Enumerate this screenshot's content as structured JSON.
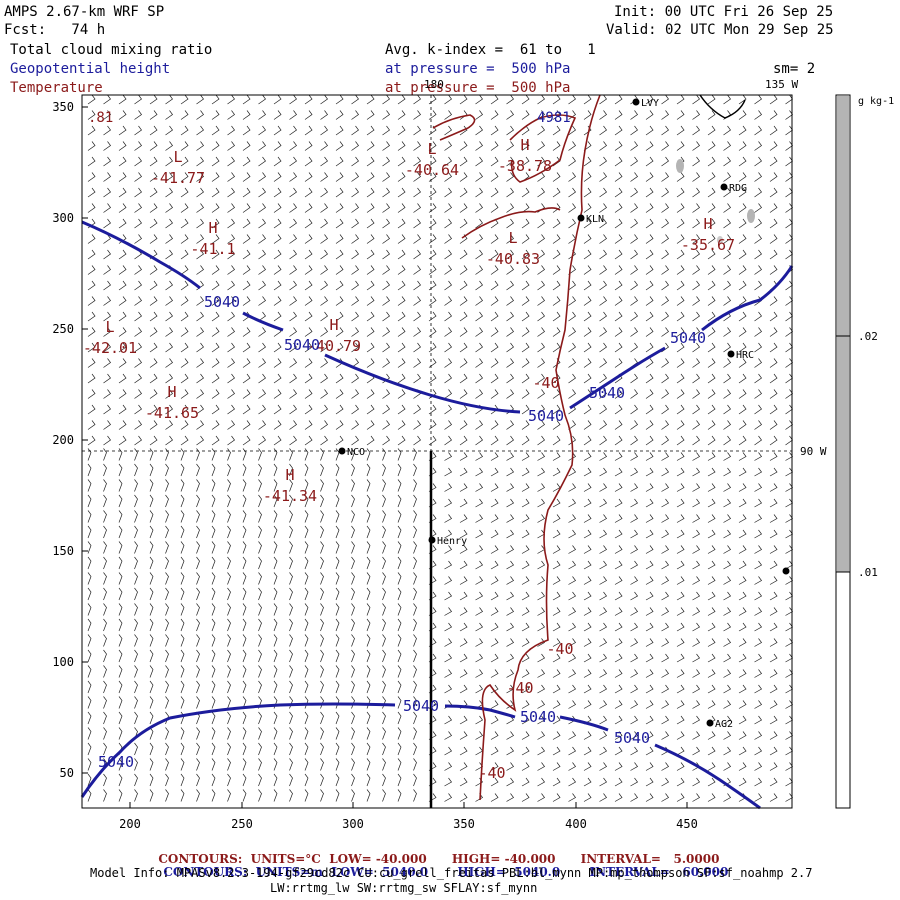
{
  "header": {
    "model": "AMPS 2.67-km WRF SP",
    "forecast": "Fcst:   74 h",
    "init": "Init: 00 UTC Fri 26 Sep 25",
    "valid": "Valid: 02 UTC Mon 29 Sep 25",
    "field1": "Total cloud mixing ratio",
    "field2": "Geopotential height",
    "field3": "Temperature",
    "avg": "Avg. k-index =  61 to   1",
    "pressure1": "at pressure =  500 hPa",
    "pressure2": "at pressure =  500 hPa",
    "smoothing": "sm= 2"
  },
  "axes": {
    "y_ticks": [
      "350",
      "300",
      "250",
      "200",
      "150",
      "100",
      "50"
    ],
    "x_ticks": [
      "200",
      "250",
      "300",
      "350",
      "400",
      "450"
    ]
  },
  "map_labels": {
    "lon_180": "180",
    "lon_135w": "135 W",
    "lon_90w": "90 W",
    "corner_value": ".81"
  },
  "stations": [
    {
      "name": "RDG"
    },
    {
      "name": "KLN"
    },
    {
      "name": "HRC"
    },
    {
      "name": "NCO"
    },
    {
      "name": "Henry"
    },
    {
      "name": "AG2"
    },
    {
      "name": "LVY"
    }
  ],
  "highs_lows": [
    {
      "letter": "L",
      "value": "-41.77"
    },
    {
      "letter": "H",
      "value": "-41.1"
    },
    {
      "letter": "L",
      "value": "-40.64"
    },
    {
      "letter": "H",
      "value": "-38.78"
    },
    {
      "letter": "L",
      "value": "-40.83"
    },
    {
      "letter": "H",
      "value": "-35.67"
    },
    {
      "letter": "L",
      "value": "-42.01"
    },
    {
      "letter": "H",
      "value": "-40.79"
    },
    {
      "letter": "H",
      "value": "-41.65"
    },
    {
      "letter": "H",
      "value": "-41.34"
    }
  ],
  "contour_labels": {
    "height": "5040",
    "temp": "-40",
    "top": "4981"
  },
  "colorbar": {
    "units": "g kg-1",
    "tick_hi": ".02",
    "tick_lo": ".01"
  },
  "footer": {
    "line1_label": "CONTOURS:",
    "line1_units": "UNITS=°C",
    "line1_low": "LOW= -40.000",
    "line1_high": "HIGH= -40.000",
    "line1_interval": "INTERVAL=   5.0000",
    "line2_label": "CONTOURS:",
    "line2_units": "UNITS=m",
    "line2_low": "LOW=  5040.0",
    "line2_high": "HIGH=  5040.0",
    "line2_interval": "INTERVAL=   60.000",
    "info1": "Model Info: MPASv8.2.3-194-gf29cd82c CU:cu_grell_freitas PBL:bl_mynn MP:mp_thompson SF:sf_noahmp 2.7",
    "info2": "LW:rrtmg_lw SW:rrtmg_sw SFLAY:sf_mynn"
  },
  "colors": {
    "height_contour": "#1c1c9c",
    "temp_contour": "#8b1a1a",
    "cloud_shade": "#b4b4b4"
  }
}
